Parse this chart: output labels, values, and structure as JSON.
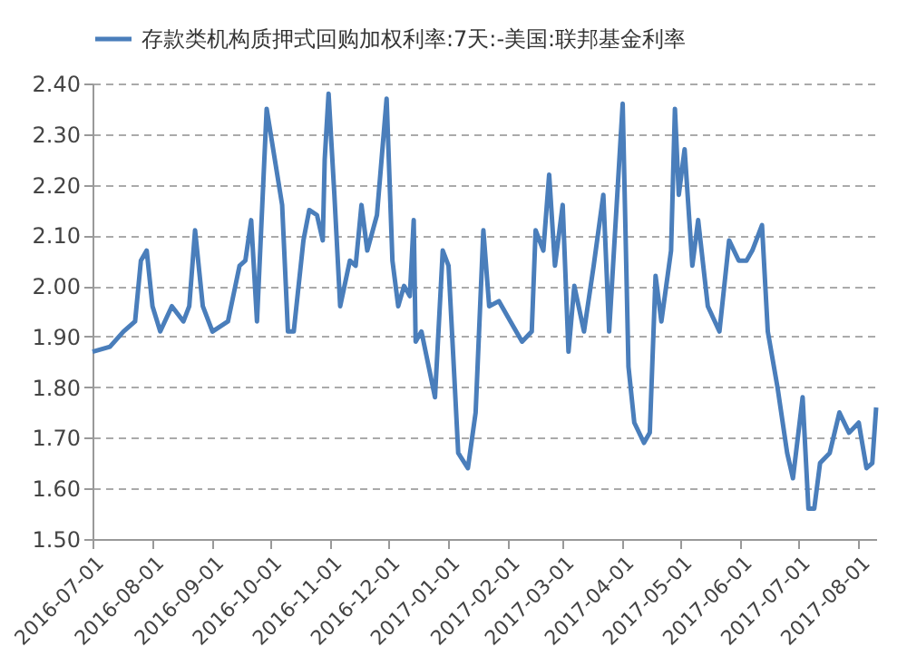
{
  "chart_data": {
    "type": "line",
    "legend": "top",
    "grid": "y",
    "line_style": "solid",
    "x": [
      "2016-07-01",
      "2016-07-10",
      "2016-07-17",
      "2016-07-23",
      "2016-07-26",
      "2016-07-29",
      "2016-08-01",
      "2016-08-05",
      "2016-08-11",
      "2016-08-17",
      "2016-08-20",
      "2016-08-23",
      "2016-08-27",
      "2016-09-01",
      "2016-09-09",
      "2016-09-15",
      "2016-09-18",
      "2016-09-21",
      "2016-09-24",
      "2016-09-29",
      "2016-10-07",
      "2016-10-10",
      "2016-10-13",
      "2016-10-18",
      "2016-10-21",
      "2016-10-25",
      "2016-10-28",
      "2016-10-29",
      "2016-10-31",
      "2016-11-03",
      "2016-11-06",
      "2016-11-11",
      "2016-11-14",
      "2016-11-17",
      "2016-11-20",
      "2016-11-25",
      "2016-11-30",
      "2016-12-03",
      "2016-12-06",
      "2016-12-09",
      "2016-12-12",
      "2016-12-14",
      "2016-12-15",
      "2016-12-18",
      "2016-12-25",
      "2016-12-29",
      "2017-01-01",
      "2017-01-04",
      "2017-01-06",
      "2017-01-11",
      "2017-01-15",
      "2017-01-19",
      "2017-01-22",
      "2017-01-27",
      "2017-02-02",
      "2017-02-08",
      "2017-02-13",
      "2017-02-15",
      "2017-02-19",
      "2017-02-22",
      "2017-02-25",
      "2017-03-01",
      "2017-03-04",
      "2017-03-07",
      "2017-03-12",
      "2017-03-17",
      "2017-03-22",
      "2017-03-25",
      "2017-04-01",
      "2017-04-04",
      "2017-04-07",
      "2017-04-12",
      "2017-04-15",
      "2017-04-18",
      "2017-04-21",
      "2017-04-26",
      "2017-04-28",
      "2017-04-30",
      "2017-05-03",
      "2017-05-07",
      "2017-05-10",
      "2017-05-15",
      "2017-05-21",
      "2017-05-26",
      "2017-05-31",
      "2017-06-04",
      "2017-06-07",
      "2017-06-12",
      "2017-06-15",
      "2017-06-20",
      "2017-06-25",
      "2017-06-28",
      "2017-07-03",
      "2017-07-06",
      "2017-07-09",
      "2017-07-12",
      "2017-07-17",
      "2017-07-22",
      "2017-07-27",
      "2017-08-01",
      "2017-08-05",
      "2017-08-08",
      "2017-08-10"
    ],
    "series": [
      {
        "name": "存款类机构质押式回购加权利率:7天:-美国:联邦基金利率",
        "color": "#4a7ebb",
        "values": [
          1.87,
          1.88,
          1.91,
          1.93,
          2.05,
          2.07,
          1.96,
          1.91,
          1.96,
          1.93,
          1.96,
          2.11,
          1.96,
          1.91,
          1.93,
          2.04,
          2.05,
          2.13,
          1.93,
          2.35,
          2.16,
          1.91,
          1.91,
          2.09,
          2.15,
          2.14,
          2.09,
          2.25,
          2.38,
          2.18,
          1.96,
          2.05,
          2.04,
          2.16,
          2.07,
          2.14,
          2.37,
          2.05,
          1.96,
          2.0,
          1.98,
          2.13,
          1.89,
          1.91,
          1.78,
          2.07,
          2.04,
          1.82,
          1.67,
          1.64,
          1.75,
          2.11,
          1.96,
          1.97,
          1.93,
          1.89,
          1.91,
          2.11,
          2.07,
          2.22,
          2.04,
          2.16,
          1.87,
          2.0,
          1.91,
          2.04,
          2.18,
          1.91,
          2.36,
          1.84,
          1.73,
          1.69,
          1.71,
          2.02,
          1.93,
          2.07,
          2.35,
          2.18,
          2.27,
          2.04,
          2.13,
          1.96,
          1.91,
          2.09,
          2.05,
          2.05,
          2.07,
          2.12,
          1.91,
          1.8,
          1.67,
          1.62,
          1.78,
          1.56,
          1.56,
          1.65,
          1.67,
          1.75,
          1.71,
          1.73,
          1.64,
          1.65,
          1.76
        ]
      }
    ],
    "xlim": [
      "2016-07-01",
      "2017-08-10"
    ],
    "xticks": [
      "2016-07-01",
      "2016-08-01",
      "2016-09-01",
      "2016-10-01",
      "2016-11-01",
      "2016-12-01",
      "2017-01-01",
      "2017-02-01",
      "2017-03-01",
      "2017-04-01",
      "2017-05-01",
      "2017-06-01",
      "2017-07-01",
      "2017-08-01"
    ],
    "ylim": [
      1.5,
      2.4
    ],
    "yticks": [
      {
        "value": 1.5,
        "label": "1.50"
      },
      {
        "value": 1.6,
        "label": "1.60"
      },
      {
        "value": 1.7,
        "label": "1.70"
      },
      {
        "value": 1.8,
        "label": "1.80"
      },
      {
        "value": 1.9,
        "label": "1.90"
      },
      {
        "value": 2.0,
        "label": "2.00"
      },
      {
        "value": 2.1,
        "label": "2.10"
      },
      {
        "value": 2.2,
        "label": "2.20"
      },
      {
        "value": 2.3,
        "label": "2.30"
      },
      {
        "value": 2.4,
        "label": "2.40"
      }
    ]
  }
}
